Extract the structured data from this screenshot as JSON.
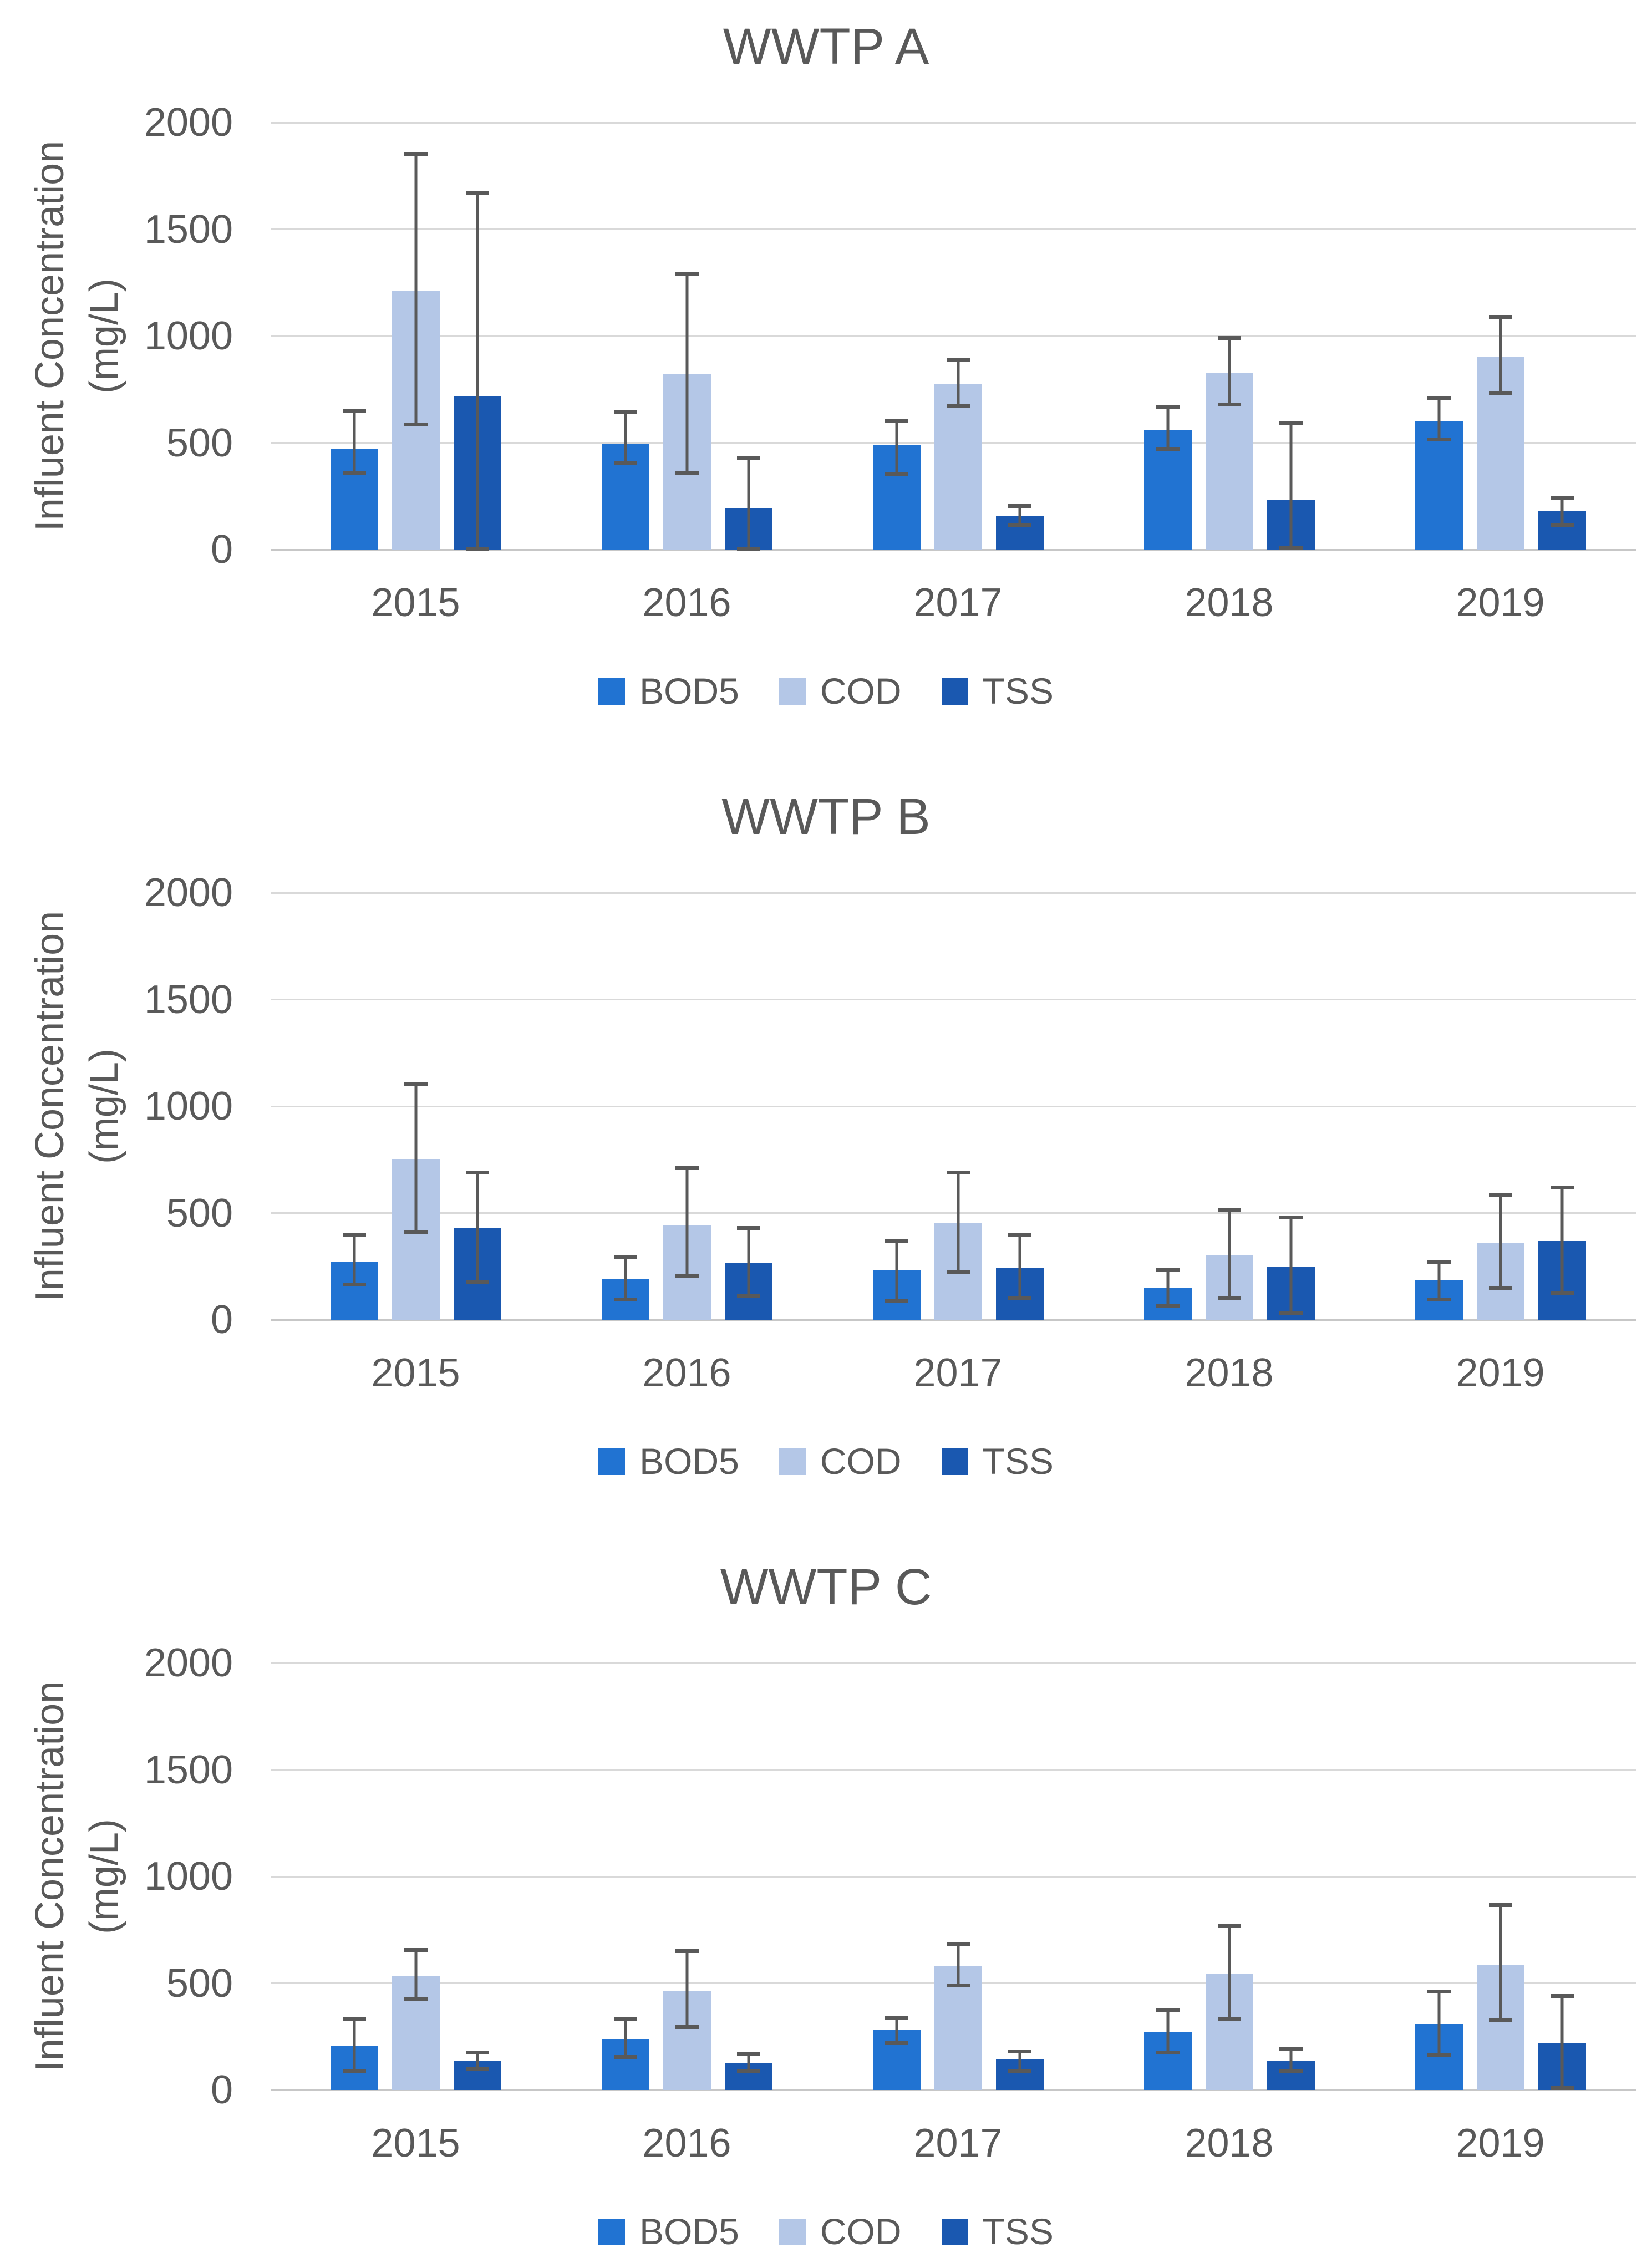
{
  "colors": {
    "series": {
      "BOD5": "#2173D2",
      "COD": "#B4C7E7",
      "TSS": "#1A58B0"
    },
    "gridline": "#D9D9D9",
    "zero_line": "#C7C7C7",
    "error_bar": "#595959",
    "text": "#595959",
    "background": "#FFFFFF"
  },
  "y_axis": {
    "title_line1": "Influent Concentration",
    "title_line2": "(mg/L)",
    "ticks": [
      2000,
      1500,
      1000,
      500,
      0
    ],
    "max": 2000,
    "min": 0
  },
  "legend_labels": [
    "BOD5",
    "COD",
    "TSS"
  ],
  "chart_data": [
    {
      "type": "bar",
      "title": "WWTP A",
      "ylabel": "Influent Concentration (mg/L)",
      "ylim": [
        0,
        2000
      ],
      "grid": true,
      "legend_position": "bottom",
      "categories": [
        "2015",
        "2016",
        "2017",
        "2018",
        "2019"
      ],
      "series": [
        {
          "name": "BOD5",
          "values": [
            470,
            495,
            490,
            560,
            600
          ],
          "error_low": [
            360,
            405,
            355,
            470,
            515
          ],
          "error_high": [
            650,
            645,
            605,
            670,
            710
          ]
        },
        {
          "name": "COD",
          "values": [
            1210,
            820,
            775,
            825,
            905
          ],
          "error_low": [
            585,
            360,
            675,
            680,
            735
          ],
          "error_high": [
            1850,
            1290,
            890,
            990,
            1090
          ]
        },
        {
          "name": "TSS",
          "values": [
            720,
            195,
            155,
            230,
            180
          ],
          "error_low": [
            5,
            5,
            115,
            10,
            115
          ],
          "error_high": [
            1670,
            430,
            205,
            590,
            240
          ]
        }
      ]
    },
    {
      "type": "bar",
      "title": "WWTP B",
      "ylabel": "Influent Concentration (mg/L)",
      "ylim": [
        0,
        2000
      ],
      "grid": true,
      "legend_position": "bottom",
      "categories": [
        "2015",
        "2016",
        "2017",
        "2018",
        "2019"
      ],
      "series": [
        {
          "name": "BOD5",
          "values": [
            270,
            190,
            230,
            150,
            185
          ],
          "error_low": [
            165,
            95,
            90,
            65,
            95
          ],
          "error_high": [
            395,
            295,
            370,
            235,
            270
          ]
        },
        {
          "name": "COD",
          "values": [
            750,
            445,
            455,
            305,
            360
          ],
          "error_low": [
            410,
            205,
            225,
            100,
            150
          ],
          "error_high": [
            1105,
            710,
            690,
            515,
            585
          ]
        },
        {
          "name": "TSS",
          "values": [
            430,
            265,
            245,
            250,
            370
          ],
          "error_low": [
            175,
            110,
            100,
            30,
            125
          ],
          "error_high": [
            690,
            430,
            395,
            480,
            620
          ]
        }
      ]
    },
    {
      "type": "bar",
      "title": "WWTP C",
      "ylabel": "Influent Concentration (mg/L)",
      "ylim": [
        0,
        2000
      ],
      "grid": true,
      "legend_position": "bottom",
      "categories": [
        "2015",
        "2016",
        "2017",
        "2018",
        "2019"
      ],
      "series": [
        {
          "name": "BOD5",
          "values": [
            205,
            240,
            280,
            270,
            310
          ],
          "error_low": [
            90,
            155,
            220,
            175,
            165
          ],
          "error_high": [
            330,
            330,
            340,
            375,
            460
          ]
        },
        {
          "name": "COD",
          "values": [
            535,
            465,
            580,
            545,
            585
          ],
          "error_low": [
            425,
            295,
            490,
            330,
            325
          ],
          "error_high": [
            655,
            650,
            685,
            770,
            865
          ]
        },
        {
          "name": "TSS",
          "values": [
            135,
            125,
            145,
            135,
            220
          ],
          "error_low": [
            100,
            90,
            90,
            90,
            10
          ],
          "error_high": [
            175,
            170,
            180,
            190,
            440
          ]
        }
      ]
    }
  ]
}
